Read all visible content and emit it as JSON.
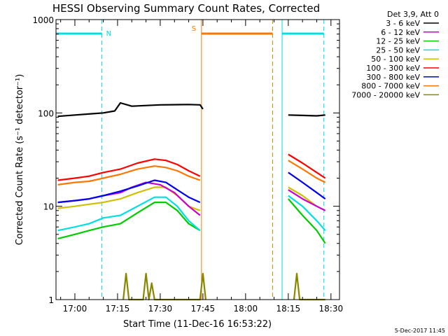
{
  "chart_data": {
    "type": "line",
    "title": "HESSI Observing Summary Count Rates, Corrected",
    "xlabel": "Start Time (11-Dec-16 16:53:22)",
    "ylabel": "Corrected Count Rate (s⁻¹ detector⁻¹)",
    "y_scale": "log",
    "xlim": [
      "16:53:22",
      "18:33:00"
    ],
    "ylim": [
      1,
      1000
    ],
    "x_ticks": [
      "17:00",
      "17:15",
      "17:30",
      "17:45",
      "18:00",
      "18:15",
      "18:30"
    ],
    "y_ticks": [
      "1",
      "10",
      "100",
      "1000"
    ],
    "legend_title": "Det 3,9, Att 0",
    "legend_position": "right",
    "date_stamp": "5-Dec-2017 11:45",
    "series": [
      {
        "name": "3 - 6 keV",
        "color": "#000000",
        "points": [
          [
            "16:54",
            92
          ],
          [
            "17:00",
            95
          ],
          [
            "17:06",
            98
          ],
          [
            "17:10",
            100
          ],
          [
            "17:14",
            105
          ],
          [
            "17:16",
            128
          ],
          [
            "17:20",
            118
          ],
          [
            "17:30",
            122
          ],
          [
            "17:40",
            123
          ],
          [
            "17:44",
            122
          ],
          [
            "17:45",
            110
          ],
          [
            "18:15",
            95
          ],
          [
            "18:20",
            94
          ],
          [
            "18:25",
            93
          ],
          [
            "18:28",
            95
          ]
        ]
      },
      {
        "name": "6 - 12 keV",
        "color": "#cc00cc",
        "points": [
          [
            "16:54",
            11
          ],
          [
            "17:00",
            11.5
          ],
          [
            "17:05",
            12
          ],
          [
            "17:10",
            13
          ],
          [
            "17:16",
            14
          ],
          [
            "17:20",
            16
          ],
          [
            "17:25",
            18
          ],
          [
            "17:30",
            17
          ],
          [
            "17:35",
            14
          ],
          [
            "17:40",
            10
          ],
          [
            "17:44",
            8
          ],
          [
            "18:15",
            15
          ],
          [
            "18:20",
            12
          ],
          [
            "18:25",
            10
          ],
          [
            "18:28",
            9
          ]
        ]
      },
      {
        "name": "12 - 25 keV",
        "color": "#00cc00",
        "points": [
          [
            "16:54",
            4.5
          ],
          [
            "17:00",
            5
          ],
          [
            "17:05",
            5.5
          ],
          [
            "17:10",
            6
          ],
          [
            "17:16",
            6.5
          ],
          [
            "17:22",
            8.5
          ],
          [
            "17:28",
            11
          ],
          [
            "17:32",
            11
          ],
          [
            "17:36",
            9
          ],
          [
            "17:40",
            6.5
          ],
          [
            "17:44",
            5.5
          ],
          [
            "18:15",
            12
          ],
          [
            "18:20",
            8
          ],
          [
            "18:25",
            5.5
          ],
          [
            "18:28",
            4
          ]
        ]
      },
      {
        "name": "25 - 50 keV",
        "color": "#00e0e0",
        "points": [
          [
            "16:54",
            5.5
          ],
          [
            "17:00",
            6
          ],
          [
            "17:05",
            6.5
          ],
          [
            "17:10",
            7.5
          ],
          [
            "17:16",
            8
          ],
          [
            "17:22",
            10
          ],
          [
            "17:28",
            12.5
          ],
          [
            "17:32",
            12.5
          ],
          [
            "17:36",
            10
          ],
          [
            "17:40",
            7
          ],
          [
            "17:44",
            5.5
          ],
          [
            "18:15",
            13
          ],
          [
            "18:20",
            10
          ],
          [
            "18:25",
            7
          ],
          [
            "18:28",
            5.5
          ]
        ]
      },
      {
        "name": "50 - 100 keV",
        "color": "#d0c000",
        "points": [
          [
            "16:54",
            9.5
          ],
          [
            "17:00",
            10
          ],
          [
            "17:05",
            10.5
          ],
          [
            "17:10",
            11
          ],
          [
            "17:16",
            12
          ],
          [
            "17:22",
            14
          ],
          [
            "17:28",
            16
          ],
          [
            "17:32",
            16
          ],
          [
            "17:36",
            13
          ],
          [
            "17:40",
            10
          ],
          [
            "17:44",
            9
          ],
          [
            "18:15",
            16
          ],
          [
            "18:20",
            13
          ],
          [
            "18:25",
            10
          ],
          [
            "18:28",
            9
          ]
        ]
      },
      {
        "name": "100 - 300 keV",
        "color": "#ff0000",
        "points": [
          [
            "16:54",
            19
          ],
          [
            "17:00",
            20
          ],
          [
            "17:05",
            21
          ],
          [
            "17:10",
            23
          ],
          [
            "17:16",
            25
          ],
          [
            "17:22",
            29
          ],
          [
            "17:28",
            32
          ],
          [
            "17:32",
            31
          ],
          [
            "17:36",
            28
          ],
          [
            "17:40",
            24
          ],
          [
            "17:44",
            21
          ],
          [
            "18:15",
            36
          ],
          [
            "18:20",
            29
          ],
          [
            "18:25",
            23
          ],
          [
            "18:28",
            20
          ]
        ]
      },
      {
        "name": "300 - 800 keV",
        "color": "#0000ee",
        "points": [
          [
            "16:54",
            11
          ],
          [
            "17:00",
            11.5
          ],
          [
            "17:05",
            12
          ],
          [
            "17:10",
            13
          ],
          [
            "17:16",
            14.5
          ],
          [
            "17:22",
            16.5
          ],
          [
            "17:28",
            19
          ],
          [
            "17:32",
            18
          ],
          [
            "17:36",
            15
          ],
          [
            "17:40",
            12.5
          ],
          [
            "17:44",
            11
          ],
          [
            "18:15",
            23
          ],
          [
            "18:20",
            18
          ],
          [
            "18:25",
            14
          ],
          [
            "18:28",
            12
          ]
        ]
      },
      {
        "name": "800 - 7000 keV",
        "color": "#ff7700",
        "points": [
          [
            "16:54",
            17
          ],
          [
            "17:00",
            18
          ],
          [
            "17:05",
            18.5
          ],
          [
            "17:10",
            20
          ],
          [
            "17:16",
            22
          ],
          [
            "17:22",
            25
          ],
          [
            "17:28",
            27
          ],
          [
            "17:32",
            26
          ],
          [
            "17:36",
            24
          ],
          [
            "17:40",
            21
          ],
          [
            "17:44",
            19
          ],
          [
            "18:15",
            31
          ],
          [
            "18:20",
            25
          ],
          [
            "18:25",
            20
          ],
          [
            "18:28",
            18
          ]
        ]
      },
      {
        "name": "7000 - 20000 keV",
        "color": "#888800",
        "points": [
          [
            "16:54",
            1
          ],
          [
            "17:17",
            1
          ],
          [
            "17:18",
            1.9
          ],
          [
            "17:19",
            1
          ],
          [
            "17:24",
            1
          ],
          [
            "17:25",
            1.9
          ],
          [
            "17:26",
            1
          ],
          [
            "17:27",
            1.5
          ],
          [
            "17:28",
            1
          ],
          [
            "17:44",
            1
          ],
          [
            "17:45",
            1.9
          ],
          [
            "17:46",
            1
          ],
          [
            "18:17",
            1
          ],
          [
            "18:18",
            1.9
          ],
          [
            "18:19",
            1
          ],
          [
            "18:28",
            1
          ]
        ]
      }
    ],
    "annotations": [
      {
        "label": "N",
        "color": "#00e0e0",
        "start": "16:53:22",
        "end": "17:09:30"
      },
      {
        "label": "S",
        "color": "#ff7700",
        "start": "17:44:30",
        "end": "18:09:30"
      },
      {
        "label": "",
        "color": "#00e0e0",
        "start": "18:12:50",
        "end": "18:27:30"
      }
    ]
  }
}
